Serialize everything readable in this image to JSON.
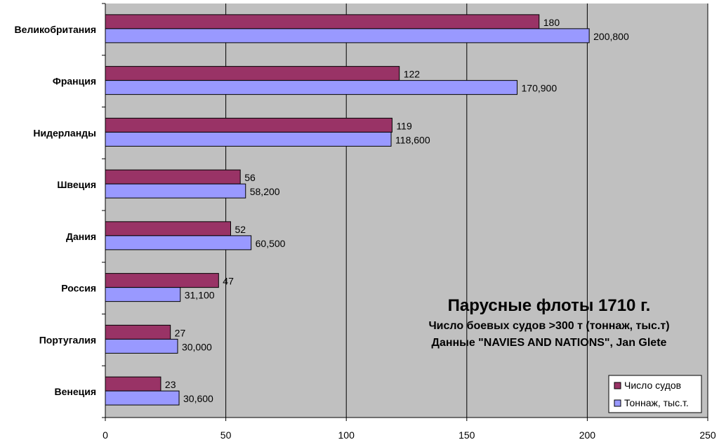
{
  "chart_data": {
    "type": "bar",
    "orientation": "horizontal",
    "title": "Парусные флоты 1710 г.",
    "subtitle_lines": [
      "Число боевых судов >300 т (тоннаж, тыс.т)",
      "Данные \"NAVIES AND NATIONS\", Jan Glete"
    ],
    "categories": [
      "Великобритания",
      "Франция",
      "Нидерланды",
      "Швеция",
      "Дания",
      "Россия",
      "Португалия",
      "Венеция"
    ],
    "series": [
      {
        "name": "Число судов",
        "color": "#993366",
        "values": [
          180,
          122,
          119,
          56,
          52,
          47,
          27,
          23
        ],
        "labels": [
          "180",
          "122",
          "119",
          "56",
          "52",
          "47",
          "27",
          "23"
        ]
      },
      {
        "name": "Тоннаж, тыс.т.",
        "color": "#9999ff",
        "values": [
          200.8,
          170.9,
          118.6,
          58.2,
          60.5,
          31.1,
          30.0,
          30.6
        ],
        "labels": [
          "200,800",
          "170,900",
          "118,600",
          "58,200",
          "60,500",
          "31,100",
          "30,000",
          "30,600"
        ]
      }
    ],
    "xlim": [
      0,
      250
    ],
    "xticks": [
      0,
      50,
      100,
      150,
      200,
      250
    ],
    "xtick_labels": [
      "0",
      "50",
      "100",
      "150",
      "200",
      "250"
    ],
    "grid": true,
    "plot_background": "#c0c0c0",
    "legend_position": "bottom-right"
  }
}
